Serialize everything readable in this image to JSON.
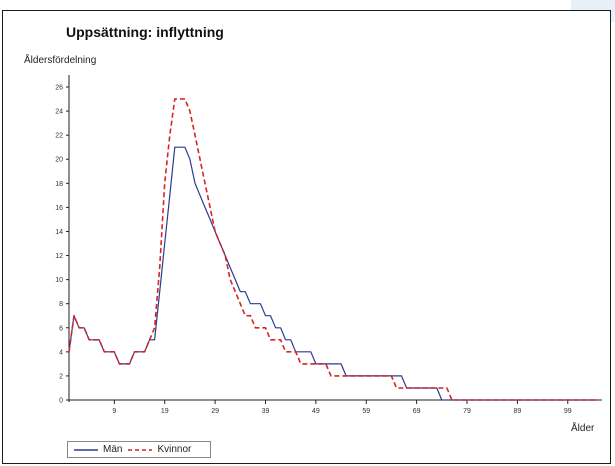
{
  "chart_data": {
    "type": "line",
    "title": "Uppsättning: inflyttning",
    "ylabel": "Åldersfördelning",
    "xlabel": "Ålder",
    "xlim": [
      0,
      105
    ],
    "ylim": [
      0,
      26
    ],
    "xticks": [
      "9",
      "19",
      "29",
      "39",
      "49",
      "59",
      "69",
      "79",
      "89",
      "99"
    ],
    "yticks": [
      "0",
      "2",
      "4",
      "6",
      "8",
      "10",
      "12",
      "14",
      "16",
      "18",
      "20",
      "22",
      "24",
      "26"
    ],
    "grid": false,
    "legend_position": "bottom-left",
    "series": [
      {
        "name": "Män",
        "color": "#2b3a8f",
        "dash": "solid",
        "x": [
          0,
          1,
          2,
          3,
          4,
          5,
          6,
          7,
          8,
          9,
          10,
          11,
          12,
          13,
          14,
          15,
          16,
          17,
          18,
          19,
          20,
          21,
          22,
          23,
          24,
          25,
          26,
          27,
          28,
          29,
          30,
          31,
          32,
          33,
          34,
          35,
          36,
          37,
          38,
          39,
          40,
          41,
          42,
          43,
          44,
          45,
          46,
          47,
          48,
          49,
          50,
          51,
          52,
          53,
          54,
          55,
          56,
          57,
          58,
          59,
          60,
          61,
          62,
          63,
          64,
          65,
          66,
          67,
          68,
          69,
          70,
          71,
          72,
          73,
          74,
          75,
          76,
          77,
          78,
          79,
          80,
          81,
          82,
          83,
          84,
          85,
          86,
          87,
          88,
          89,
          90,
          91,
          92,
          93,
          94,
          95,
          96,
          97,
          98,
          99,
          100,
          101,
          102,
          103,
          104,
          105
        ],
        "values": [
          4,
          7,
          6,
          6,
          5,
          5,
          5,
          4,
          4,
          4,
          3,
          3,
          3,
          4,
          4,
          4,
          5,
          5,
          9,
          13,
          17,
          21,
          21,
          21,
          20,
          18,
          17,
          16,
          15,
          14,
          13,
          12,
          11,
          10,
          9,
          9,
          8,
          8,
          8,
          7,
          7,
          6,
          6,
          5,
          5,
          4,
          4,
          4,
          4,
          3,
          3,
          3,
          3,
          3,
          3,
          2,
          2,
          2,
          2,
          2,
          2,
          2,
          2,
          2,
          2,
          2,
          2,
          1,
          1,
          1,
          1,
          1,
          1,
          1,
          0,
          0,
          0,
          0,
          0,
          0,
          0,
          0,
          0,
          0,
          0,
          0,
          0,
          0,
          0,
          0,
          0,
          0,
          0,
          0,
          0,
          0,
          0,
          0,
          0,
          0,
          0,
          0,
          0,
          0,
          0,
          0
        ]
      },
      {
        "name": "Kvinnor",
        "color": "#d42424",
        "dash": "dashed",
        "x": [
          0,
          1,
          2,
          3,
          4,
          5,
          6,
          7,
          8,
          9,
          10,
          11,
          12,
          13,
          14,
          15,
          16,
          17,
          18,
          19,
          20,
          21,
          22,
          23,
          24,
          25,
          26,
          27,
          28,
          29,
          30,
          31,
          32,
          33,
          34,
          35,
          36,
          37,
          38,
          39,
          40,
          41,
          42,
          43,
          44,
          45,
          46,
          47,
          48,
          49,
          50,
          51,
          52,
          53,
          54,
          55,
          56,
          57,
          58,
          59,
          60,
          61,
          62,
          63,
          64,
          65,
          66,
          67,
          68,
          69,
          70,
          71,
          72,
          73,
          74,
          75,
          76,
          77,
          78,
          79,
          80,
          81,
          82,
          83,
          84,
          85,
          86,
          87,
          88,
          89,
          90,
          91,
          92,
          93,
          94,
          95,
          96,
          97,
          98,
          99,
          100,
          101,
          102,
          103,
          104,
          105
        ],
        "values": [
          4,
          7,
          6,
          6,
          5,
          5,
          5,
          4,
          4,
          4,
          3,
          3,
          3,
          4,
          4,
          4,
          5,
          6,
          11,
          18,
          22,
          25,
          25,
          25,
          24,
          22,
          20,
          18,
          16,
          14,
          13,
          12,
          10,
          9,
          8,
          7,
          7,
          6,
          6,
          6,
          5,
          5,
          5,
          4,
          4,
          4,
          3,
          3,
          3,
          3,
          3,
          3,
          2,
          2,
          2,
          2,
          2,
          2,
          2,
          2,
          2,
          2,
          2,
          2,
          2,
          1,
          1,
          1,
          1,
          1,
          1,
          1,
          1,
          1,
          1,
          1,
          0,
          0,
          0,
          0,
          0,
          0,
          0,
          0,
          0,
          0,
          0,
          0,
          0,
          0,
          0,
          0,
          0,
          0,
          0,
          0,
          0,
          0,
          0,
          0,
          0,
          0,
          0,
          0,
          0,
          0
        ]
      }
    ]
  }
}
